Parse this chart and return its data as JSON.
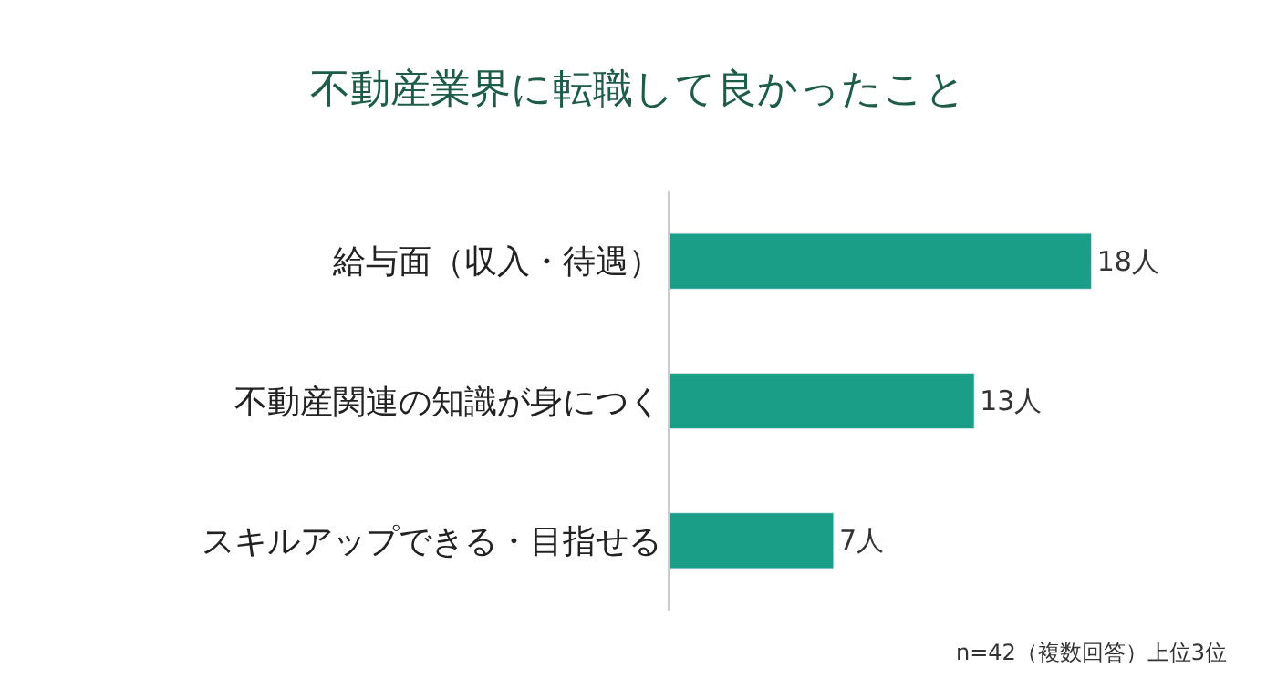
{
  "chart_data": {
    "type": "bar",
    "orientation": "horizontal",
    "title": "不動産業界に転職して良かったこと",
    "categories": [
      "給与面（収入・待遇）",
      "不動産関連の知識が身につく",
      "スキルアップできる・目指せる"
    ],
    "values": [
      18,
      13,
      7
    ],
    "value_labels": [
      "18人",
      "13人",
      "7人"
    ],
    "color": "#1a9e88",
    "annotations": [
      "n=42（複数回答）上位3位"
    ]
  }
}
